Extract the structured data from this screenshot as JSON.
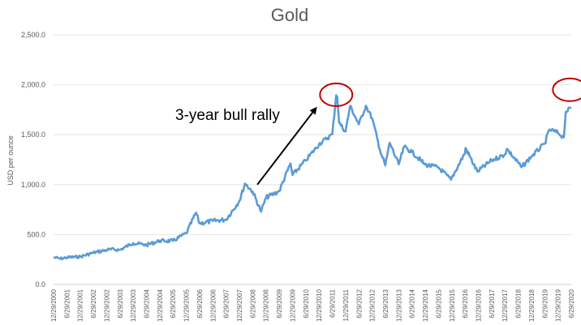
{
  "chart_data": {
    "type": "line",
    "title": "Gold",
    "ylabel": "USD per ounce",
    "ylim": [
      0,
      2500
    ],
    "yticks": [
      "0.0",
      "500.0",
      "1,000.0",
      "1,500.0",
      "2,000.0",
      "2,500.0"
    ],
    "yticks_values": [
      0,
      500,
      1000,
      1500,
      2000,
      2500
    ],
    "grid": true,
    "xlim": [
      "2000-12-29",
      "2020-06-29"
    ],
    "xticks": [
      "12/29/2000",
      "6/29/2001",
      "12/29/2001",
      "6/29/2002",
      "12/29/2002",
      "6/29/2003",
      "12/29/2003",
      "6/29/2004",
      "12/29/2004",
      "6/29/2005",
      "12/29/2005",
      "6/29/2006",
      "12/29/2006",
      "6/29/2007",
      "12/29/2007",
      "6/29/2008",
      "12/29/2008",
      "6/29/2009",
      "12/29/2009",
      "6/29/2010",
      "12/29/2010",
      "6/29/2011",
      "12/29/2011",
      "6/29/2012",
      "12/29/2012",
      "6/29/2013",
      "12/29/2013",
      "6/29/2014",
      "12/29/2014",
      "6/29/2015",
      "12/29/2015",
      "6/29/2016",
      "12/29/2016",
      "6/29/2017",
      "12/29/2017",
      "6/29/2018",
      "12/29/2018",
      "6/29/2019",
      "12/29/2019",
      "6/29/2020"
    ],
    "series": [
      {
        "color": "#5b9bd5",
        "x": [
          "2000-12-29",
          "2001-04-01",
          "2001-06-29",
          "2001-12-29",
          "2002-06-29",
          "2002-12-29",
          "2003-03-01",
          "2003-06-29",
          "2003-12-29",
          "2004-06-29",
          "2004-12-29",
          "2005-06-29",
          "2005-12-29",
          "2006-05-12",
          "2006-06-29",
          "2006-12-29",
          "2007-06-29",
          "2007-12-29",
          "2008-03-17",
          "2008-06-29",
          "2008-10-24",
          "2008-12-29",
          "2009-06-29",
          "2009-12-02",
          "2009-12-29",
          "2010-06-29",
          "2010-12-29",
          "2011-06-29",
          "2011-08-22",
          "2011-09-06",
          "2011-10-01",
          "2011-12-29",
          "2012-02-29",
          "2012-06-29",
          "2012-10-04",
          "2012-12-29",
          "2013-04-15",
          "2013-06-28",
          "2013-08-28",
          "2013-12-29",
          "2014-03-15",
          "2014-06-29",
          "2014-12-29",
          "2015-06-29",
          "2015-12-17",
          "2016-06-29",
          "2016-07-06",
          "2016-12-15",
          "2017-06-29",
          "2017-12-29",
          "2018-01-25",
          "2018-08-16",
          "2018-12-29",
          "2019-06-29",
          "2019-09-04",
          "2019-12-29",
          "2020-03-19",
          "2020-04-14",
          "2020-06-29"
        ],
        "values": [
          272,
          258,
          270,
          278,
          318,
          345,
          352,
          346,
          415,
          395,
          438,
          436,
          513,
          720,
          612,
          636,
          650,
          836,
          1011,
          930,
          730,
          870,
          934,
          1212,
          1096,
          1242,
          1405,
          1505,
          1895,
          1880,
          1620,
          1531,
          1788,
          1604,
          1790,
          1664,
          1350,
          1192,
          1420,
          1202,
          1380,
          1326,
          1199,
          1172,
          1049,
          1320,
          1367,
          1130,
          1242,
          1302,
          1358,
          1174,
          1282,
          1409,
          1552,
          1517,
          1474,
          1730,
          1768
        ]
      }
    ],
    "annotations": [
      {
        "text": "3-year bull rally",
        "arrow_from": [
          "2008-09-01",
          1000
        ],
        "arrow_to": [
          "2010-12-01",
          1780
        ]
      },
      {
        "circle_at": [
          "2011-08-22",
          1900
        ]
      },
      {
        "circle_at": [
          "2020-06-10",
          1950
        ]
      }
    ]
  }
}
